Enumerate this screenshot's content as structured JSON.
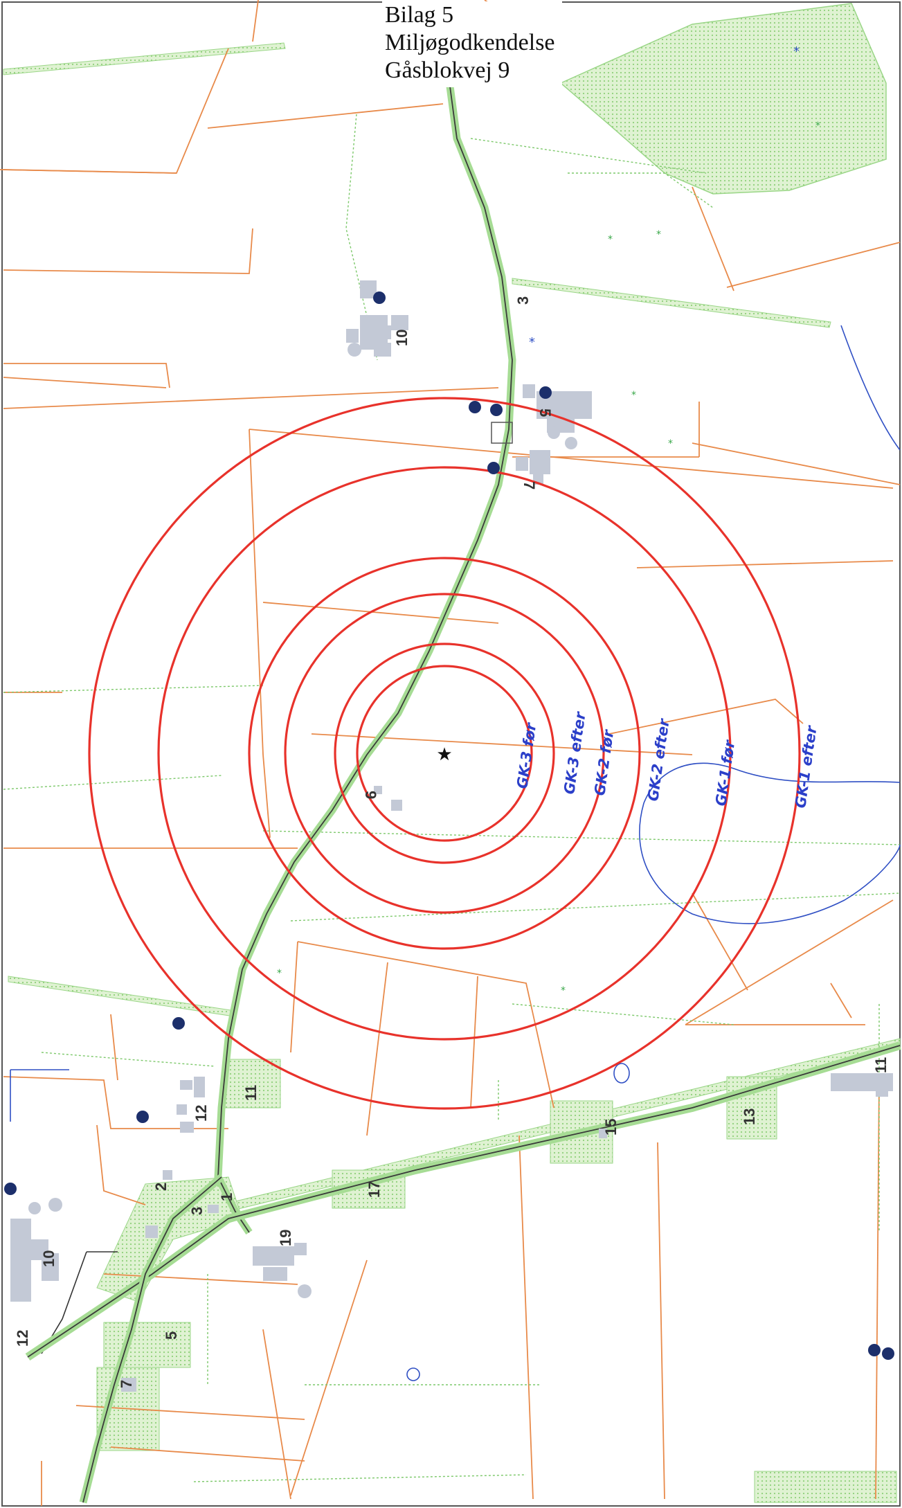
{
  "title": {
    "line1": "Bilag 5",
    "line2": "Miljøgodkendelse",
    "line3": "Gåsblokvej 9"
  },
  "colors": {
    "contour_red": "#e8322b",
    "parcel_orange": "#e88a4a",
    "green_dotted": "#7cc86a",
    "green_fill": "#d7efc9",
    "road_dark": "#3a3a3a",
    "water_blue": "#2f4fc4",
    "building_gray": "#c3c9d6",
    "marker_navy": "#1c2f6b",
    "annotation_blue": "#2b3fc9"
  },
  "center_symbol": "star-icon",
  "contours": [
    {
      "label": "GK-3 før"
    },
    {
      "label": "GK-3 efter"
    },
    {
      "label": "GK-2 før"
    },
    {
      "label": "GK-2 efter"
    },
    {
      "label": "GK-1 før"
    },
    {
      "label": "GK-1 efter"
    }
  ],
  "house_numbers": [
    {
      "text": "10"
    },
    {
      "text": "3"
    },
    {
      "text": "5"
    },
    {
      "text": "7"
    },
    {
      "text": "9"
    },
    {
      "text": "11"
    },
    {
      "text": "12"
    },
    {
      "text": "2"
    },
    {
      "text": "3"
    },
    {
      "text": "1"
    },
    {
      "text": "10"
    },
    {
      "text": "17"
    },
    {
      "text": "19"
    },
    {
      "text": "15"
    },
    {
      "text": "13"
    },
    {
      "text": "11"
    },
    {
      "text": "5"
    },
    {
      "text": "12"
    },
    {
      "text": "7"
    }
  ]
}
